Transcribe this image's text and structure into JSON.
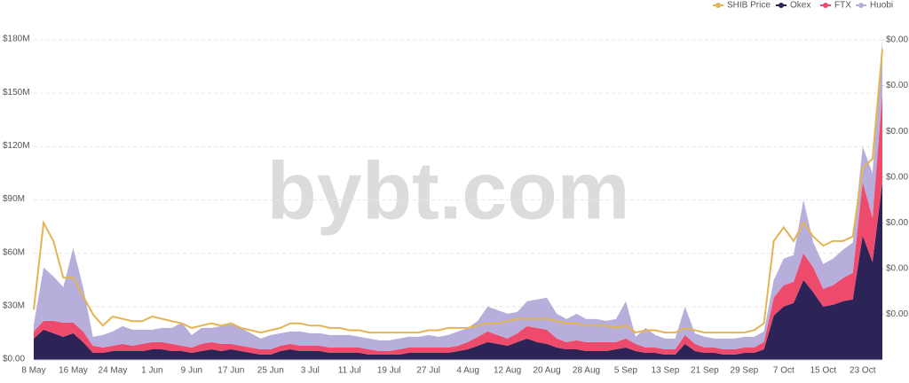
{
  "chart_data": {
    "type": "stacked-area",
    "watermark": "bybt.com",
    "categories": [
      "8 May",
      null,
      null,
      null,
      "16 May",
      null,
      null,
      null,
      "24 May",
      null,
      null,
      null,
      "1 Jun",
      null,
      null,
      null,
      "9 Jun",
      null,
      null,
      null,
      "17 Jun",
      null,
      null,
      null,
      "25 Jun",
      null,
      null,
      null,
      "3 Jul",
      null,
      null,
      null,
      "11 Jul",
      null,
      null,
      null,
      "19 Jul",
      null,
      null,
      null,
      "27 Jul",
      null,
      null,
      null,
      "4 Aug",
      null,
      null,
      null,
      "12 Aug",
      null,
      null,
      null,
      "20 Aug",
      null,
      null,
      null,
      "28 Aug",
      null,
      null,
      null,
      "5 Sep",
      null,
      null,
      null,
      "13 Sep",
      null,
      null,
      null,
      "21 Sep",
      null,
      null,
      null,
      "29 Sep",
      null,
      null,
      null,
      "7 Oct",
      null,
      null,
      null,
      "15 Oct",
      null,
      null,
      null,
      "23 Oct",
      null,
      null
    ],
    "series": [
      {
        "name": "SHIB Price",
        "color": "#e3b552",
        "axis": "y2",
        "values": [
          1.1e-05,
          3e-05,
          2.6e-05,
          1.8e-05,
          1.8e-05,
          1.4e-05,
          1e-05,
          7.5e-06,
          9.5e-06,
          9e-06,
          8.5e-06,
          8.5e-06,
          9.5e-06,
          9e-06,
          8.5e-06,
          8e-06,
          7e-06,
          7.5e-06,
          8e-06,
          7.5e-06,
          8e-06,
          7e-06,
          6.5e-06,
          6e-06,
          6.5e-06,
          7e-06,
          8e-06,
          8e-06,
          7.5e-06,
          7.5e-06,
          7e-06,
          7e-06,
          6.5e-06,
          6.5e-06,
          6e-06,
          6e-06,
          6e-06,
          6e-06,
          6e-06,
          6e-06,
          6.5e-06,
          6.5e-06,
          7e-06,
          7e-06,
          7e-06,
          7.5e-06,
          8e-06,
          8e-06,
          8.5e-06,
          9e-06,
          9e-06,
          9e-06,
          9e-06,
          8.5e-06,
          8e-06,
          8e-06,
          7.5e-06,
          7.5e-06,
          7.5e-06,
          7e-06,
          7.5e-06,
          6e-06,
          6.5e-06,
          6.5e-06,
          6e-06,
          6e-06,
          7e-06,
          6.5e-06,
          6e-06,
          6e-06,
          6e-06,
          6e-06,
          6e-06,
          6.5e-06,
          8e-06,
          2.6e-05,
          2.9e-05,
          2.6e-05,
          3e-05,
          2.7e-05,
          2.5e-05,
          2.6e-05,
          2.6e-05,
          2.7e-05,
          4.2e-05,
          4.4e-05,
          6.8e-05
        ]
      },
      {
        "name": "Okex",
        "color": "#2c2456",
        "values": [
          12000000.0,
          17000000.0,
          15000000.0,
          13000000.0,
          15000000.0,
          10000000.0,
          4000000.0,
          4000000.0,
          5000000.0,
          5000000.0,
          5000000.0,
          5000000.0,
          6000000.0,
          6000000.0,
          5000000.0,
          5000000.0,
          4000000.0,
          5000000.0,
          6000000.0,
          5000000.0,
          6000000.0,
          5000000.0,
          4000000.0,
          3000000.0,
          3000000.0,
          5000000.0,
          6000000.0,
          5000000.0,
          5000000.0,
          5000000.0,
          4000000.0,
          4000000.0,
          4000000.0,
          4000000.0,
          3000000.0,
          3000000.0,
          3000000.0,
          3000000.0,
          4000000.0,
          4000000.0,
          4000000.0,
          4000000.0,
          4000000.0,
          5000000.0,
          6000000.0,
          8000000.0,
          10000000.0,
          9000000.0,
          8000000.0,
          10000000.0,
          12000000.0,
          10000000.0,
          9000000.0,
          7000000.0,
          6000000.0,
          6000000.0,
          5000000.0,
          5000000.0,
          5000000.0,
          6000000.0,
          7000000.0,
          5000000.0,
          4000000.0,
          4000000.0,
          3000000.0,
          3000000.0,
          9000000.0,
          5000000.0,
          4000000.0,
          4000000.0,
          3000000.0,
          3000000.0,
          4000000.0,
          4000000.0,
          6000000.0,
          25000000.0,
          30000000.0,
          32000000.0,
          45000000.0,
          38000000.0,
          30000000.0,
          31000000.0,
          33000000.0,
          34000000.0,
          70000000.0,
          55000000.0,
          100000000.0
        ]
      },
      {
        "name": "FTX",
        "color": "#ee4b6c",
        "values": [
          4000000.0,
          5000000.0,
          7000000.0,
          8000000.0,
          6000000.0,
          6000000.0,
          4000000.0,
          3000000.0,
          3000000.0,
          4000000.0,
          3000000.0,
          4000000.0,
          4000000.0,
          4000000.0,
          4000000.0,
          3000000.0,
          3000000.0,
          4000000.0,
          4000000.0,
          4000000.0,
          3000000.0,
          3000000.0,
          3000000.0,
          3000000.0,
          3000000.0,
          3000000.0,
          3000000.0,
          3000000.0,
          3000000.0,
          3000000.0,
          3000000.0,
          3000000.0,
          3000000.0,
          3000000.0,
          3000000.0,
          2000000.0,
          2000000.0,
          3000000.0,
          3000000.0,
          3000000.0,
          3000000.0,
          3000000.0,
          3000000.0,
          3000000.0,
          4000000.0,
          5000000.0,
          6000000.0,
          5000000.0,
          4000000.0,
          5000000.0,
          7000000.0,
          8000000.0,
          8000000.0,
          5000000.0,
          4000000.0,
          5000000.0,
          5000000.0,
          5000000.0,
          5000000.0,
          4000000.0,
          5000000.0,
          4000000.0,
          3000000.0,
          3000000.0,
          3000000.0,
          3000000.0,
          5000000.0,
          4000000.0,
          3000000.0,
          3000000.0,
          3000000.0,
          3000000.0,
          3000000.0,
          3000000.0,
          4000000.0,
          10000000.0,
          12000000.0,
          12000000.0,
          15000000.0,
          14000000.0,
          10000000.0,
          11000000.0,
          13000000.0,
          15000000.0,
          30000000.0,
          25000000.0,
          50000000.0
        ]
      },
      {
        "name": "Huobi",
        "color": "#b8aedb",
        "values": [
          4000000.0,
          30000000.0,
          25000000.0,
          20000000.0,
          42000000.0,
          25000000.0,
          5000000.0,
          7000000.0,
          8000000.0,
          10000000.0,
          9000000.0,
          8000000.0,
          7000000.0,
          8000000.0,
          9000000.0,
          13000000.0,
          7000000.0,
          9000000.0,
          8000000.0,
          10000000.0,
          11000000.0,
          10000000.0,
          8000000.0,
          6000000.0,
          8000000.0,
          7000000.0,
          7000000.0,
          8000000.0,
          7000000.0,
          7000000.0,
          7000000.0,
          7000000.0,
          7000000.0,
          6000000.0,
          6000000.0,
          6000000.0,
          6000000.0,
          6000000.0,
          6000000.0,
          6000000.0,
          7000000.0,
          6000000.0,
          7000000.0,
          8000000.0,
          8000000.0,
          9000000.0,
          14000000.0,
          14000000.0,
          14000000.0,
          12000000.0,
          14000000.0,
          16000000.0,
          18000000.0,
          14000000.0,
          13000000.0,
          15000000.0,
          13000000.0,
          13000000.0,
          12000000.0,
          13000000.0,
          21000000.0,
          4000000.0,
          11000000.0,
          7000000.0,
          6000000.0,
          6000000.0,
          16000000.0,
          6000000.0,
          6000000.0,
          5000000.0,
          6000000.0,
          6000000.0,
          6000000.0,
          6000000.0,
          6000000.0,
          10000000.0,
          15000000.0,
          15000000.0,
          30000000.0,
          14000000.0,
          14000000.0,
          15000000.0,
          16000000.0,
          17000000.0,
          20000000.0,
          25000000.0,
          30000000.0
        ]
      }
    ],
    "ylim": [
      0,
      180000000
    ],
    "yticks": [
      {
        "value": 0,
        "label": "$0.00"
      },
      {
        "value": 30000000,
        "label": "$30M"
      },
      {
        "value": 60000000,
        "label": "$60M"
      },
      {
        "value": 90000000,
        "label": "$90M"
      },
      {
        "value": 120000000,
        "label": "$120M"
      },
      {
        "value": 150000000,
        "label": "$150M"
      },
      {
        "value": 180000000,
        "label": "$180M"
      }
    ],
    "y2lim": [
      0,
      7e-05
    ],
    "y2ticks": [
      {
        "value": 1e-05,
        "label": "$0.00"
      },
      {
        "value": 2e-05,
        "label": "$0.00"
      },
      {
        "value": 3e-05,
        "label": "$0.00"
      },
      {
        "value": 4e-05,
        "label": "$0.00"
      },
      {
        "value": 5e-05,
        "label": "$0.00"
      },
      {
        "value": 6e-05,
        "label": "$0.00"
      },
      {
        "value": 7e-05,
        "label": "$0.00"
      }
    ],
    "grid": true,
    "legend": "top-right"
  }
}
